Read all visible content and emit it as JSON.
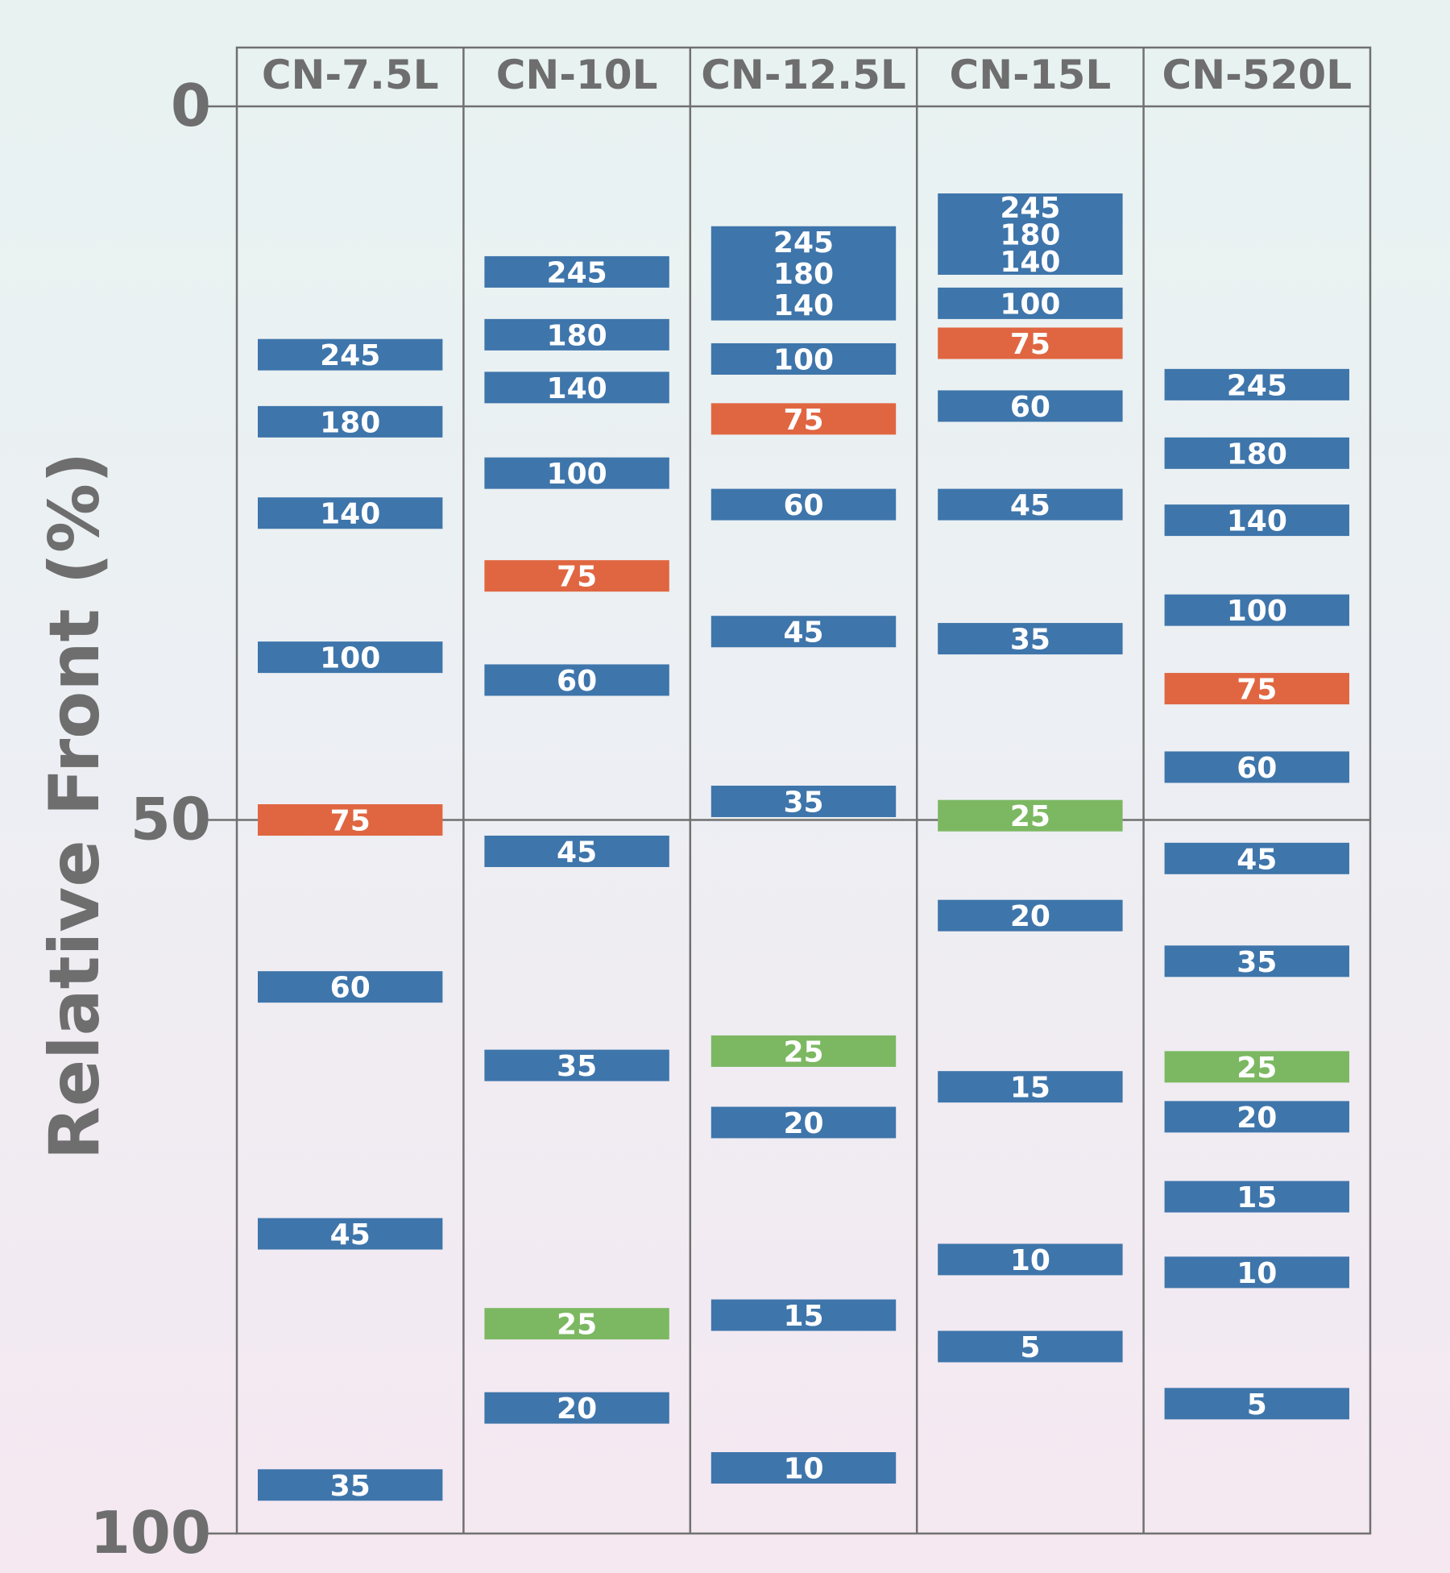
{
  "chart_data": {
    "type": "table",
    "ylabel": "Relative Front (%)",
    "ylim": [
      0,
      100
    ],
    "yticks": [
      "0",
      "50",
      "100"
    ],
    "y_inverted": true,
    "grid_line_at": 50,
    "colors": {
      "default": "#3e75ab",
      "75": "#e06641",
      "25": "#7cb862",
      "frame": "#707070",
      "text": "#6e6e6e",
      "band_text": "#ffffff"
    },
    "columns": [
      {
        "name": "CN-7.5L",
        "bands": [
          {
            "label": "245",
            "rf": 17.4
          },
          {
            "label": "180",
            "rf": 22.1
          },
          {
            "label": "140",
            "rf": 28.5
          },
          {
            "label": "100",
            "rf": 38.6
          },
          {
            "label": "75",
            "rf": 50.0
          },
          {
            "label": "60",
            "rf": 61.7
          },
          {
            "label": "45",
            "rf": 79.0
          },
          {
            "label": "35",
            "rf": 96.6
          }
        ]
      },
      {
        "name": "CN-10L",
        "bands": [
          {
            "label": "245",
            "rf": 11.6
          },
          {
            "label": "180",
            "rf": 16.0
          },
          {
            "label": "140",
            "rf": 19.7
          },
          {
            "label": "100",
            "rf": 25.7
          },
          {
            "label": "75",
            "rf": 32.9
          },
          {
            "label": "60",
            "rf": 40.2
          },
          {
            "label": "45",
            "rf": 52.2
          },
          {
            "label": "35",
            "rf": 67.2
          },
          {
            "label": "25",
            "rf": 85.3
          },
          {
            "label": "20",
            "rf": 91.2
          }
        ]
      },
      {
        "name": "CN-12.5L",
        "group_labels": [
          {
            "labels": [
              "245",
              "180",
              "140"
            ],
            "rf_top": 8.4,
            "rf_bottom": 15.0
          }
        ],
        "bands": [
          {
            "label": "100",
            "rf": 17.7
          },
          {
            "label": "75",
            "rf": 21.9
          },
          {
            "label": "60",
            "rf": 27.9
          },
          {
            "label": "45",
            "rf": 36.8
          },
          {
            "label": "35",
            "rf": 48.7
          },
          {
            "label": "25",
            "rf": 66.2
          },
          {
            "label": "20",
            "rf": 71.2
          },
          {
            "label": "15",
            "rf": 84.7
          },
          {
            "label": "10",
            "rf": 95.4
          }
        ]
      },
      {
        "name": "CN-15L",
        "group_labels": [
          {
            "labels": [
              "245",
              "180",
              "140"
            ],
            "rf_top": 6.1,
            "rf_bottom": 11.8
          }
        ],
        "bands": [
          {
            "label": "100",
            "rf": 13.8
          },
          {
            "label": "75",
            "rf": 16.6
          },
          {
            "label": "60",
            "rf": 21.0
          },
          {
            "label": "45",
            "rf": 27.9
          },
          {
            "label": "35",
            "rf": 37.3
          },
          {
            "label": "25",
            "rf": 49.7
          },
          {
            "label": "20",
            "rf": 56.7
          },
          {
            "label": "15",
            "rf": 68.7
          },
          {
            "label": "10",
            "rf": 80.8
          },
          {
            "label": "5",
            "rf": 86.9
          }
        ]
      },
      {
        "name": "CN-520L",
        "bands": [
          {
            "label": "245",
            "rf": 19.5
          },
          {
            "label": "180",
            "rf": 24.3
          },
          {
            "label": "140",
            "rf": 29.0
          },
          {
            "label": "100",
            "rf": 35.3
          },
          {
            "label": "75",
            "rf": 40.8
          },
          {
            "label": "60",
            "rf": 46.3
          },
          {
            "label": "45",
            "rf": 52.7
          },
          {
            "label": "35",
            "rf": 59.9
          },
          {
            "label": "25",
            "rf": 67.3
          },
          {
            "label": "20",
            "rf": 70.8
          },
          {
            "label": "15",
            "rf": 76.4
          },
          {
            "label": "10",
            "rf": 81.7
          },
          {
            "label": "5",
            "rf": 90.9
          }
        ]
      }
    ]
  }
}
